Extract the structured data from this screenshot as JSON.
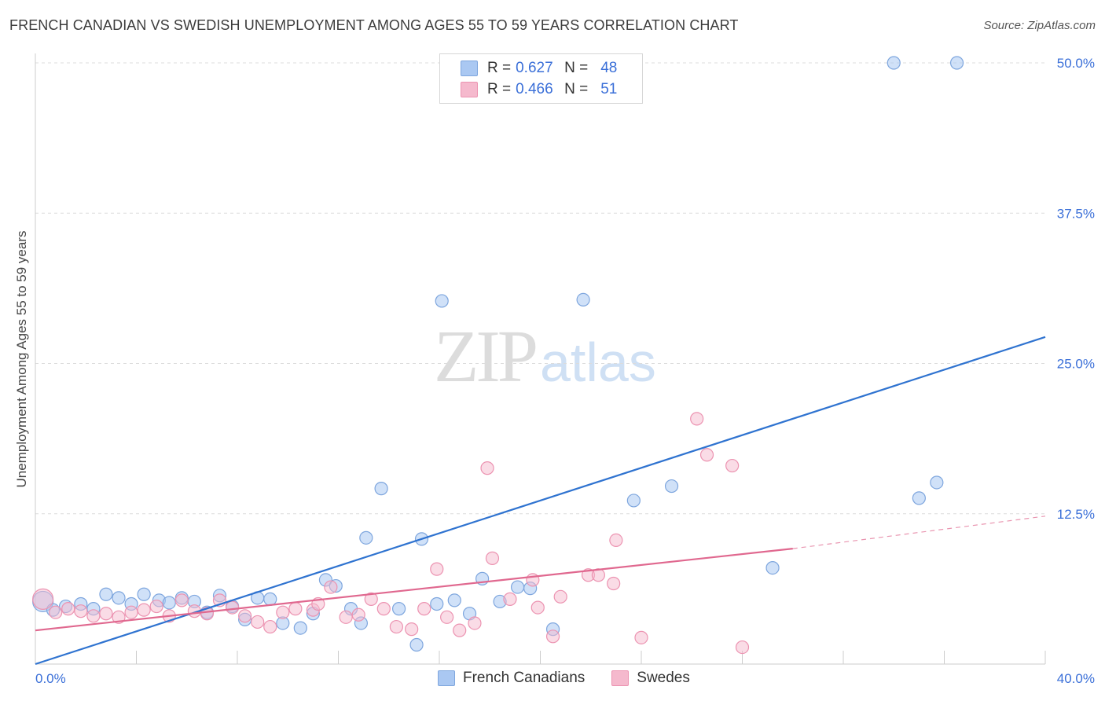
{
  "title": "FRENCH CANADIAN VS SWEDISH UNEMPLOYMENT AMONG AGES 55 TO 59 YEARS CORRELATION CHART",
  "source": "Source: ZipAtlas.com",
  "watermark": {
    "part1": "ZIP",
    "part2": "atlas"
  },
  "legend": {
    "rows": [
      {
        "r_label": "R =",
        "r_value": "0.627",
        "n_label": "N =",
        "n_value": "48",
        "color": "#aac8f2"
      },
      {
        "r_label": "R =",
        "r_value": "0.466",
        "n_label": "N =",
        "n_value": "51",
        "color": "#f5b9cd"
      }
    ]
  },
  "bottom_legend": [
    {
      "label": "French Canadians",
      "color": "#aac8f2"
    },
    {
      "label": "Swedes",
      "color": "#f5b9cd"
    }
  ],
  "chart_data": {
    "type": "scatter",
    "title": "FRENCH CANADIAN VS SWEDISH UNEMPLOYMENT AMONG AGES 55 TO 59 YEARS CORRELATION CHART",
    "xlabel": "",
    "ylabel": "Unemployment Among Ages 55 to 59 years",
    "xlim": [
      0,
      40
    ],
    "ylim": [
      0,
      50
    ],
    "x_tick_labels": [
      "0.0%",
      "40.0%"
    ],
    "y_ticks": [
      12.5,
      25.0,
      37.5,
      50.0
    ],
    "y_tick_labels": [
      "12.5%",
      "25.0%",
      "37.5%",
      "50.0%"
    ],
    "grid": true,
    "colors": {
      "blue_fill": "#aac8f2",
      "blue_stroke": "#7ea6de",
      "blue_line": "#2f73d0",
      "pink_fill": "#f5b9cd",
      "pink_stroke": "#ec93b1",
      "pink_line": "#e0688f",
      "tick_text": "#3a6fd8"
    },
    "series": [
      {
        "name": "French Canadians",
        "points": [
          [
            0.3,
            5.2
          ],
          [
            0.7,
            4.5
          ],
          [
            1.2,
            4.8
          ],
          [
            1.8,
            5.0
          ],
          [
            2.3,
            4.6
          ],
          [
            2.8,
            5.8
          ],
          [
            3.3,
            5.5
          ],
          [
            3.8,
            5.0
          ],
          [
            4.3,
            5.8
          ],
          [
            4.9,
            5.3
          ],
          [
            5.3,
            5.1
          ],
          [
            5.8,
            5.5
          ],
          [
            6.3,
            5.2
          ],
          [
            6.8,
            4.3
          ],
          [
            7.3,
            5.7
          ],
          [
            7.8,
            4.8
          ],
          [
            8.3,
            3.7
          ],
          [
            8.8,
            5.5
          ],
          [
            9.3,
            5.4
          ],
          [
            9.8,
            3.4
          ],
          [
            10.5,
            3.0
          ],
          [
            11.0,
            4.2
          ],
          [
            11.5,
            7.0
          ],
          [
            11.9,
            6.5
          ],
          [
            12.5,
            4.6
          ],
          [
            12.9,
            3.4
          ],
          [
            13.1,
            10.5
          ],
          [
            13.7,
            14.6
          ],
          [
            14.4,
            4.6
          ],
          [
            15.1,
            1.6
          ],
          [
            15.3,
            10.4
          ],
          [
            15.9,
            5.0
          ],
          [
            16.1,
            30.2
          ],
          [
            16.6,
            5.3
          ],
          [
            17.2,
            4.2
          ],
          [
            17.7,
            7.1
          ],
          [
            18.4,
            5.2
          ],
          [
            19.1,
            6.4
          ],
          [
            19.6,
            6.3
          ],
          [
            20.5,
            2.9
          ],
          [
            21.7,
            30.3
          ],
          [
            23.7,
            13.6
          ],
          [
            25.2,
            14.8
          ],
          [
            29.2,
            8.0
          ],
          [
            34.0,
            50.0
          ],
          [
            35.0,
            13.8
          ],
          [
            35.7,
            15.1
          ],
          [
            36.5,
            50.0
          ]
        ]
      },
      {
        "name": "Swedes",
        "points": [
          [
            0.3,
            5.4
          ],
          [
            0.8,
            4.3
          ],
          [
            1.3,
            4.6
          ],
          [
            1.8,
            4.4
          ],
          [
            2.3,
            4.0
          ],
          [
            2.8,
            4.2
          ],
          [
            3.3,
            3.9
          ],
          [
            3.8,
            4.3
          ],
          [
            4.3,
            4.5
          ],
          [
            4.8,
            4.8
          ],
          [
            5.3,
            4.0
          ],
          [
            5.8,
            5.3
          ],
          [
            6.3,
            4.4
          ],
          [
            6.8,
            4.2
          ],
          [
            7.3,
            5.3
          ],
          [
            7.8,
            4.7
          ],
          [
            8.3,
            4.0
          ],
          [
            8.8,
            3.5
          ],
          [
            9.3,
            3.1
          ],
          [
            9.8,
            4.3
          ],
          [
            10.3,
            4.6
          ],
          [
            11.0,
            4.5
          ],
          [
            11.2,
            5.0
          ],
          [
            11.7,
            6.4
          ],
          [
            12.3,
            3.9
          ],
          [
            12.8,
            4.1
          ],
          [
            13.3,
            5.4
          ],
          [
            13.8,
            4.6
          ],
          [
            14.3,
            3.1
          ],
          [
            14.9,
            2.9
          ],
          [
            15.4,
            4.6
          ],
          [
            15.9,
            7.9
          ],
          [
            16.3,
            3.9
          ],
          [
            16.8,
            2.8
          ],
          [
            17.4,
            3.4
          ],
          [
            17.9,
            16.3
          ],
          [
            18.1,
            8.8
          ],
          [
            18.8,
            5.4
          ],
          [
            19.7,
            7.0
          ],
          [
            19.9,
            4.7
          ],
          [
            20.5,
            2.3
          ],
          [
            20.8,
            5.6
          ],
          [
            21.9,
            7.4
          ],
          [
            22.3,
            7.4
          ],
          [
            22.9,
            6.7
          ],
          [
            23.0,
            10.3
          ],
          [
            24.0,
            2.2
          ],
          [
            26.2,
            20.4
          ],
          [
            26.6,
            17.4
          ],
          [
            27.6,
            16.5
          ],
          [
            28.0,
            1.4
          ]
        ]
      }
    ],
    "trendlines": [
      {
        "series": "French Canadians",
        "from": [
          0,
          0.0
        ],
        "to": [
          40,
          27.2
        ]
      },
      {
        "series": "Swedes",
        "solid_from": [
          0,
          2.8
        ],
        "solid_to": [
          30.0,
          9.6
        ],
        "dashed_to": [
          40,
          12.3
        ]
      }
    ]
  }
}
